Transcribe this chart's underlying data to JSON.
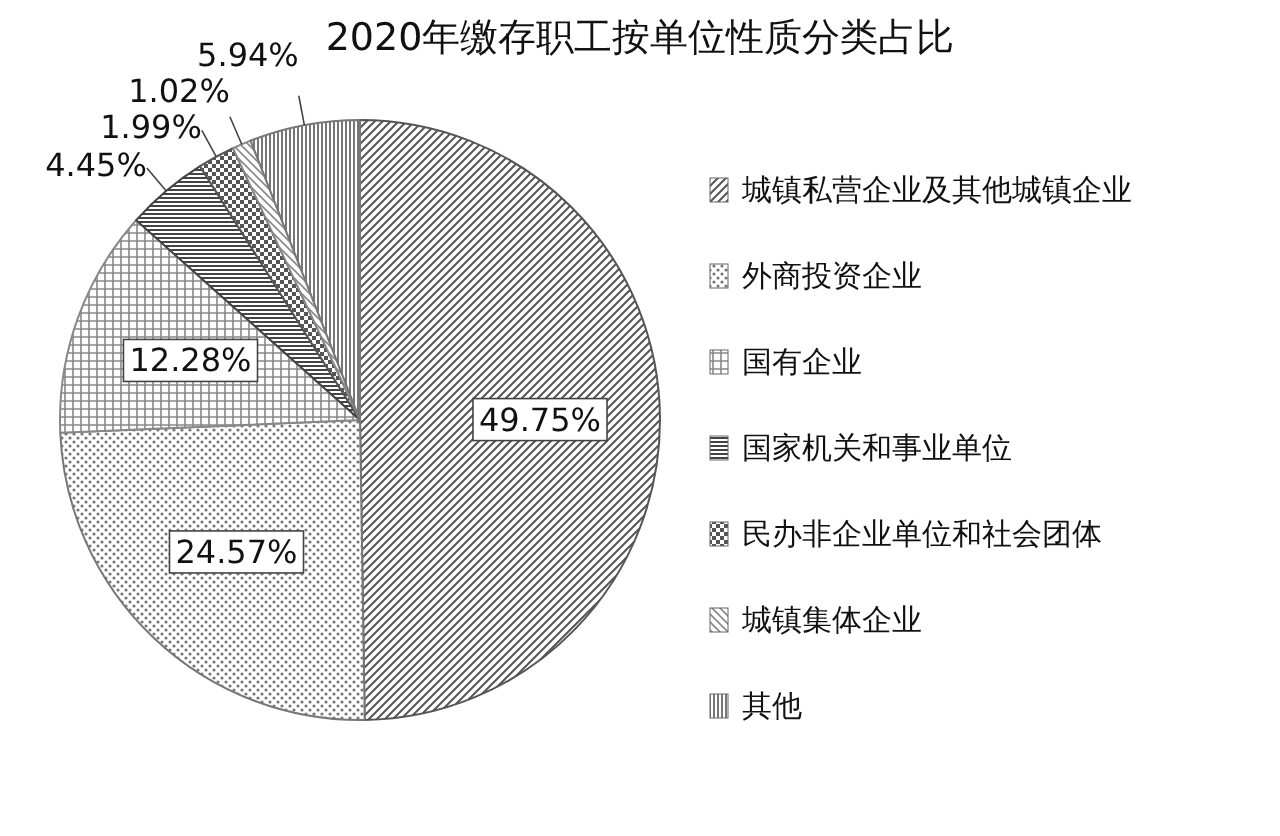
{
  "chart_data": {
    "type": "pie",
    "title": "2020年缴存职工按单位性质分类占比",
    "categories": [
      "城镇私营企业及其他城镇企业",
      "外商投资企业",
      "国有企业",
      "国家机关和事业单位",
      "民办非企业单位和社会团体",
      "城镇集体企业",
      "其他"
    ],
    "values": [
      49.75,
      24.57,
      12.28,
      4.45,
      1.99,
      1.02,
      5.94
    ],
    "value_labels": [
      "49.75%",
      "24.57%",
      "12.28%",
      "4.45%",
      "1.99%",
      "1.02%",
      "5.94%"
    ],
    "colors": [
      "#555555",
      "#777777",
      "#888888",
      "#444444",
      "#555555",
      "#888888",
      "#777777"
    ],
    "legend": "right"
  }
}
